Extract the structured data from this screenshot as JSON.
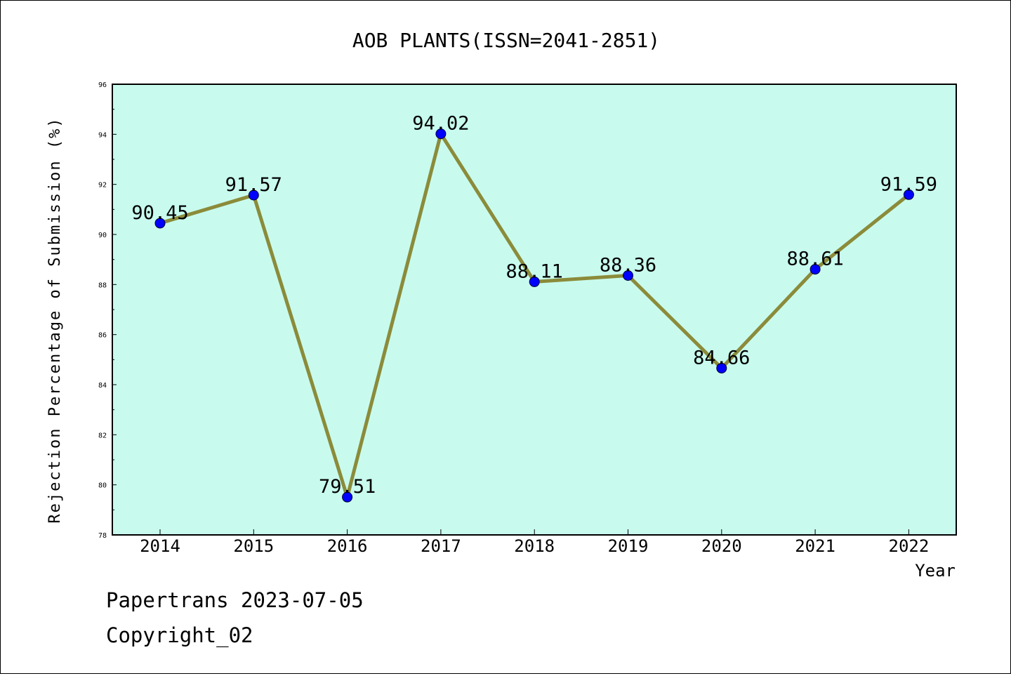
{
  "chart_data": {
    "type": "line",
    "title": "AOB PLANTS(ISSN=2041-2851)",
    "xlabel": "Year",
    "ylabel": "Rejection Percentage of Submission (%)",
    "categories": [
      "2014",
      "2015",
      "2016",
      "2017",
      "2018",
      "2019",
      "2020",
      "2021",
      "2022"
    ],
    "values": [
      90.45,
      91.57,
      79.51,
      94.02,
      88.11,
      88.36,
      84.66,
      88.61,
      91.59
    ],
    "value_labels": [
      "90.45",
      "91.57",
      "79.51",
      "94.02",
      "88.11",
      "88.36",
      "84.66",
      "88.61",
      "91.59"
    ],
    "ylim": [
      78,
      96
    ],
    "yticks": [
      "78",
      "80",
      "82",
      "84",
      "86",
      "88",
      "90",
      "92",
      "94",
      "96"
    ],
    "grid": false,
    "colors": {
      "plot_background": "#c8fbee",
      "line": "#8b8b3a",
      "marker": "#0000ff"
    }
  },
  "footer": {
    "line1": "Papertrans 2023-07-05",
    "line2": "Copyright_02"
  }
}
